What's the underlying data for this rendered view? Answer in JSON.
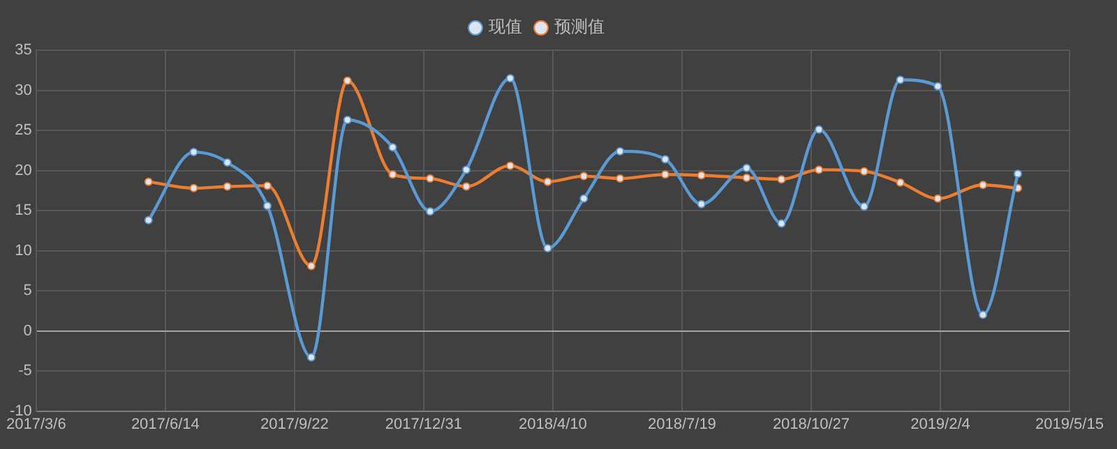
{
  "chart_data": {
    "type": "line",
    "x": [
      "2017-06-01",
      "2017-07-06",
      "2017-08-01",
      "2017-09-01",
      "2017-10-05",
      "2017-11-02",
      "2017-12-07",
      "2018-01-05",
      "2018-02-02",
      "2018-03-08",
      "2018-04-06",
      "2018-05-04",
      "2018-06-01",
      "2018-07-06",
      "2018-08-03",
      "2018-09-07",
      "2018-10-04",
      "2018-11-02",
      "2018-12-07",
      "2019-01-04",
      "2019-02-02",
      "2019-03-09",
      "2019-04-05"
    ],
    "series": [
      {
        "name": "现值",
        "color": "#5b9bd5",
        "values": [
          13.8,
          22.3,
          21.0,
          15.6,
          -3.3,
          26.3,
          22.9,
          14.9,
          20.1,
          31.5,
          10.3,
          16.5,
          22.4,
          21.4,
          15.8,
          20.3,
          13.4,
          25.1,
          15.5,
          31.3,
          30.5,
          2.0,
          19.6
        ]
      },
      {
        "name": "预测值",
        "color": "#ed7d31",
        "values": [
          18.6,
          17.8,
          18.0,
          18.1,
          8.1,
          31.2,
          19.5,
          19.0,
          18.0,
          20.6,
          18.6,
          19.3,
          19.0,
          19.5,
          19.4,
          19.1,
          18.9,
          20.1,
          19.9,
          18.5,
          16.5,
          18.2,
          17.8
        ]
      }
    ],
    "xlim": [
      "2017-03-06",
      "2019-05-15"
    ],
    "xticks": [
      {
        "value": "2017-03-06",
        "label": "2017/3/6"
      },
      {
        "value": "2017-06-14",
        "label": "2017/6/14"
      },
      {
        "value": "2017-09-22",
        "label": "2017/9/22"
      },
      {
        "value": "2017-12-31",
        "label": "2017/12/31"
      },
      {
        "value": "2018-04-10",
        "label": "2018/4/10"
      },
      {
        "value": "2018-07-19",
        "label": "2018/7/19"
      },
      {
        "value": "2018-10-27",
        "label": "2018/10/27"
      },
      {
        "value": "2019-02-04",
        "label": "2019/2/4"
      },
      {
        "value": "2019-05-15",
        "label": "2019/5/15"
      }
    ],
    "ylim": [
      -10,
      35
    ],
    "yticks": [
      -10,
      -5,
      0,
      5,
      10,
      15,
      20,
      25,
      30,
      35
    ],
    "grid": true,
    "legend": "top",
    "marker": "circle",
    "line_style": "solid"
  }
}
